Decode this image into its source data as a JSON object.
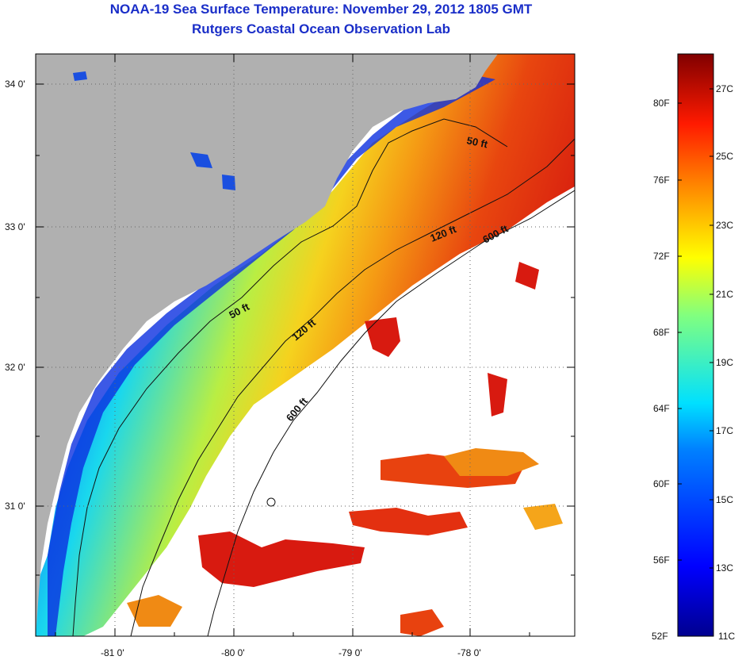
{
  "title": {
    "line1": "NOAA-19 Sea Surface Temperature:  November 29, 2012 1805 GMT",
    "line2": "Rutgers Coastal Ocean Observation Lab"
  },
  "map": {
    "lat_labels": [
      "34 0'",
      "33 0'",
      "32 0'",
      "31 0'"
    ],
    "lon_labels": [
      "-81 0'",
      "-80 0'",
      "-79 0'",
      "-78 0'"
    ],
    "contour_labels": {
      "c50_north": "50 ft",
      "c50_south": "50 ft",
      "c120_north": "120 ft",
      "c120_south": "120 ft",
      "c600_north": "600 ft",
      "c600_south": "600 ft"
    }
  },
  "colorbar": {
    "fahrenheit": [
      "80F",
      "76F",
      "72F",
      "68F",
      "64F",
      "60F",
      "56F",
      "52F"
    ],
    "celsius": [
      "27C",
      "25C",
      "23C",
      "21C",
      "19C",
      "17C",
      "15C",
      "13C",
      "11C"
    ]
  },
  "colors": {
    "land": "#b0b0b0",
    "title": "#1a2ec8",
    "no_data": "#ffffff"
  }
}
